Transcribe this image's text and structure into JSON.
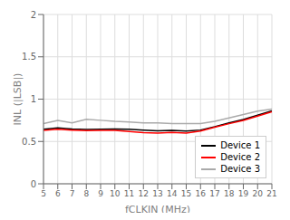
{
  "chart_data": {
    "type": "line",
    "xlabel": "fCLKIN (MHz)",
    "ylabel": "INL (|LSB|)",
    "x": [
      5,
      6,
      7,
      8,
      9,
      10,
      11,
      12,
      13,
      14,
      15,
      16,
      17,
      18,
      19,
      20,
      21
    ],
    "series": [
      {
        "name": "Device 1",
        "color": "#000000",
        "values": [
          0.645,
          0.66,
          0.648,
          0.642,
          0.645,
          0.648,
          0.645,
          0.635,
          0.625,
          0.632,
          0.622,
          0.635,
          0.675,
          0.72,
          0.76,
          0.81,
          0.862
        ]
      },
      {
        "name": "Device 2",
        "color": "#ff0000",
        "values": [
          0.63,
          0.645,
          0.635,
          0.628,
          0.63,
          0.63,
          0.618,
          0.605,
          0.598,
          0.608,
          0.6,
          0.622,
          0.668,
          0.71,
          0.748,
          0.8,
          0.85
        ]
      },
      {
        "name": "Device 3",
        "color": "#aaaaaa",
        "values": [
          0.71,
          0.748,
          0.72,
          0.762,
          0.75,
          0.738,
          0.73,
          0.72,
          0.718,
          0.712,
          0.71,
          0.712,
          0.738,
          0.778,
          0.818,
          0.858,
          0.882
        ]
      }
    ],
    "xlim": [
      5,
      21
    ],
    "ylim": [
      0,
      2
    ],
    "xticks": [
      5,
      6,
      7,
      8,
      9,
      10,
      11,
      12,
      13,
      14,
      15,
      16,
      17,
      18,
      19,
      20,
      21
    ],
    "yticks": [
      0,
      0.5,
      1,
      1.5,
      2
    ],
    "grid": true,
    "legend": "lower right"
  }
}
